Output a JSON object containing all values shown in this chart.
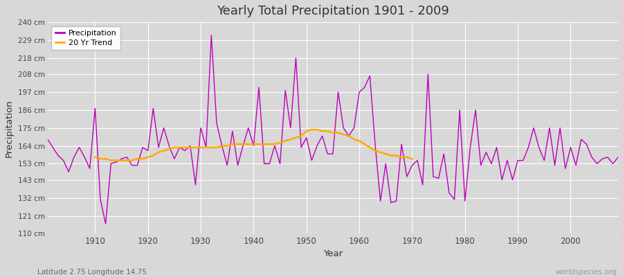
{
  "title": "Yearly Total Precipitation 1901 - 2009",
  "xlabel": "Year",
  "ylabel": "Precipitation",
  "subtitle": "Latitude 2.75 Longitude 14.75",
  "watermark": "worldspecies.org",
  "bg_color": "#d8d8d8",
  "plot_bg_color": "#d8d8d8",
  "precip_color": "#bb00bb",
  "trend_color": "#ffaa00",
  "ylim": [
    110,
    240
  ],
  "ytick_values": [
    110,
    121,
    132,
    143,
    153,
    164,
    175,
    186,
    197,
    208,
    218,
    229,
    240
  ],
  "xlim": [
    1901,
    2009
  ],
  "xtick_values": [
    1910,
    1920,
    1930,
    1940,
    1950,
    1960,
    1970,
    1980,
    1990,
    2000
  ],
  "years": [
    1901,
    1902,
    1903,
    1904,
    1905,
    1906,
    1907,
    1908,
    1909,
    1910,
    1911,
    1912,
    1913,
    1914,
    1915,
    1916,
    1917,
    1918,
    1919,
    1920,
    1921,
    1922,
    1923,
    1924,
    1925,
    1926,
    1927,
    1928,
    1929,
    1930,
    1931,
    1932,
    1933,
    1934,
    1935,
    1936,
    1937,
    1938,
    1939,
    1940,
    1941,
    1942,
    1943,
    1944,
    1945,
    1946,
    1947,
    1948,
    1949,
    1950,
    1951,
    1952,
    1953,
    1954,
    1955,
    1956,
    1957,
    1958,
    1959,
    1960,
    1961,
    1962,
    1963,
    1964,
    1965,
    1966,
    1967,
    1968,
    1969,
    1970,
    1971,
    1972,
    1973,
    1974,
    1975,
    1976,
    1977,
    1978,
    1979,
    1980,
    1981,
    1982,
    1983,
    1984,
    1985,
    1986,
    1987,
    1988,
    1989,
    1990,
    1991,
    1992,
    1993,
    1994,
    1995,
    1996,
    1997,
    1998,
    1999,
    2000,
    2001,
    2002,
    2003,
    2004,
    2005,
    2006,
    2007,
    2008,
    2009
  ],
  "precip": [
    168,
    163,
    158,
    155,
    148,
    157,
    163,
    157,
    150,
    187,
    131,
    116,
    153,
    154,
    156,
    157,
    152,
    152,
    163,
    161,
    187,
    163,
    175,
    164,
    156,
    163,
    161,
    164,
    140,
    175,
    163,
    232,
    178,
    164,
    152,
    173,
    152,
    164,
    175,
    164,
    200,
    153,
    153,
    164,
    153,
    198,
    175,
    218,
    163,
    169,
    155,
    164,
    170,
    159,
    159,
    197,
    175,
    170,
    175,
    197,
    200,
    207,
    165,
    130,
    153,
    129,
    130,
    165,
    145,
    152,
    155,
    140,
    208,
    145,
    144,
    159,
    135,
    131,
    186,
    130,
    163,
    186,
    152,
    160,
    153,
    163,
    143,
    155,
    143,
    155,
    155,
    163,
    175,
    163,
    155,
    175,
    152,
    175,
    150,
    163,
    152,
    168,
    165,
    157,
    153,
    156,
    157,
    153,
    157
  ],
  "trend_years": [
    1910,
    1911,
    1912,
    1913,
    1914,
    1915,
    1916,
    1917,
    1918,
    1919,
    1920,
    1921,
    1922,
    1923,
    1924,
    1925,
    1926,
    1927,
    1928,
    1929,
    1930,
    1931,
    1932,
    1933,
    1934,
    1935,
    1936,
    1937,
    1938,
    1939,
    1940,
    1941,
    1942,
    1943,
    1944,
    1945,
    1946,
    1947,
    1948,
    1949,
    1950,
    1951,
    1952,
    1953,
    1954,
    1955,
    1956,
    1957,
    1958,
    1959,
    1960,
    1961,
    1962,
    1963,
    1964,
    1965,
    1966,
    1967,
    1968,
    1969,
    1970
  ],
  "trend": [
    157,
    156,
    156,
    155,
    155,
    155,
    155,
    155,
    156,
    156,
    157,
    158,
    160,
    161,
    162,
    163,
    163,
    163,
    163,
    163,
    163,
    163,
    163,
    163,
    164,
    164,
    165,
    165,
    165,
    165,
    165,
    165,
    165,
    165,
    165,
    166,
    167,
    168,
    169,
    170,
    173,
    174,
    174,
    173,
    173,
    172,
    172,
    171,
    170,
    168,
    167,
    165,
    163,
    161,
    160,
    159,
    158,
    158,
    157,
    157,
    156
  ]
}
